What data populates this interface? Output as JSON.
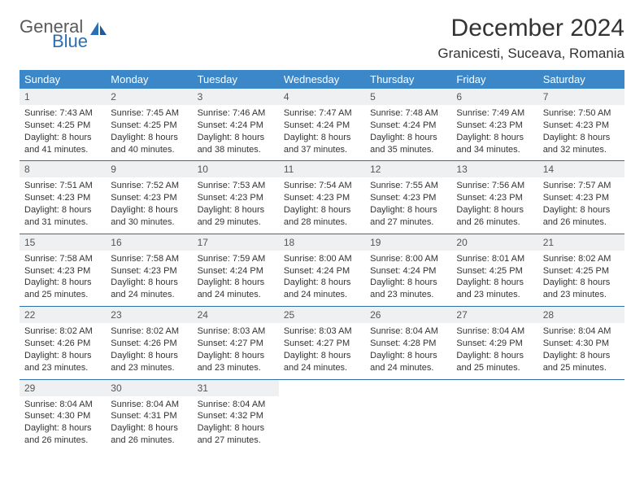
{
  "logo": {
    "word1": "General",
    "word2": "Blue"
  },
  "title": "December 2024",
  "location": "Granicesti, Suceava, Romania",
  "colors": {
    "header_bg": "#3b87c8",
    "header_text": "#ffffff",
    "row_border": "#2f6ea8",
    "daynum_bg": "#eef0f1",
    "logo_gray": "#5a5a5a",
    "logo_blue": "#2a6fb5"
  },
  "day_headers": [
    "Sunday",
    "Monday",
    "Tuesday",
    "Wednesday",
    "Thursday",
    "Friday",
    "Saturday"
  ],
  "weeks": [
    [
      {
        "n": "1",
        "sr": "7:43 AM",
        "ss": "4:25 PM",
        "d1": "Daylight: 8 hours",
        "d2": "and 41 minutes."
      },
      {
        "n": "2",
        "sr": "7:45 AM",
        "ss": "4:25 PM",
        "d1": "Daylight: 8 hours",
        "d2": "and 40 minutes."
      },
      {
        "n": "3",
        "sr": "7:46 AM",
        "ss": "4:24 PM",
        "d1": "Daylight: 8 hours",
        "d2": "and 38 minutes."
      },
      {
        "n": "4",
        "sr": "7:47 AM",
        "ss": "4:24 PM",
        "d1": "Daylight: 8 hours",
        "d2": "and 37 minutes."
      },
      {
        "n": "5",
        "sr": "7:48 AM",
        "ss": "4:24 PM",
        "d1": "Daylight: 8 hours",
        "d2": "and 35 minutes."
      },
      {
        "n": "6",
        "sr": "7:49 AM",
        "ss": "4:23 PM",
        "d1": "Daylight: 8 hours",
        "d2": "and 34 minutes."
      },
      {
        "n": "7",
        "sr": "7:50 AM",
        "ss": "4:23 PM",
        "d1": "Daylight: 8 hours",
        "d2": "and 32 minutes."
      }
    ],
    [
      {
        "n": "8",
        "sr": "7:51 AM",
        "ss": "4:23 PM",
        "d1": "Daylight: 8 hours",
        "d2": "and 31 minutes."
      },
      {
        "n": "9",
        "sr": "7:52 AM",
        "ss": "4:23 PM",
        "d1": "Daylight: 8 hours",
        "d2": "and 30 minutes."
      },
      {
        "n": "10",
        "sr": "7:53 AM",
        "ss": "4:23 PM",
        "d1": "Daylight: 8 hours",
        "d2": "and 29 minutes."
      },
      {
        "n": "11",
        "sr": "7:54 AM",
        "ss": "4:23 PM",
        "d1": "Daylight: 8 hours",
        "d2": "and 28 minutes."
      },
      {
        "n": "12",
        "sr": "7:55 AM",
        "ss": "4:23 PM",
        "d1": "Daylight: 8 hours",
        "d2": "and 27 minutes."
      },
      {
        "n": "13",
        "sr": "7:56 AM",
        "ss": "4:23 PM",
        "d1": "Daylight: 8 hours",
        "d2": "and 26 minutes."
      },
      {
        "n": "14",
        "sr": "7:57 AM",
        "ss": "4:23 PM",
        "d1": "Daylight: 8 hours",
        "d2": "and 26 minutes."
      }
    ],
    [
      {
        "n": "15",
        "sr": "7:58 AM",
        "ss": "4:23 PM",
        "d1": "Daylight: 8 hours",
        "d2": "and 25 minutes."
      },
      {
        "n": "16",
        "sr": "7:58 AM",
        "ss": "4:23 PM",
        "d1": "Daylight: 8 hours",
        "d2": "and 24 minutes."
      },
      {
        "n": "17",
        "sr": "7:59 AM",
        "ss": "4:24 PM",
        "d1": "Daylight: 8 hours",
        "d2": "and 24 minutes."
      },
      {
        "n": "18",
        "sr": "8:00 AM",
        "ss": "4:24 PM",
        "d1": "Daylight: 8 hours",
        "d2": "and 24 minutes."
      },
      {
        "n": "19",
        "sr": "8:00 AM",
        "ss": "4:24 PM",
        "d1": "Daylight: 8 hours",
        "d2": "and 23 minutes."
      },
      {
        "n": "20",
        "sr": "8:01 AM",
        "ss": "4:25 PM",
        "d1": "Daylight: 8 hours",
        "d2": "and 23 minutes."
      },
      {
        "n": "21",
        "sr": "8:02 AM",
        "ss": "4:25 PM",
        "d1": "Daylight: 8 hours",
        "d2": "and 23 minutes."
      }
    ],
    [
      {
        "n": "22",
        "sr": "8:02 AM",
        "ss": "4:26 PM",
        "d1": "Daylight: 8 hours",
        "d2": "and 23 minutes."
      },
      {
        "n": "23",
        "sr": "8:02 AM",
        "ss": "4:26 PM",
        "d1": "Daylight: 8 hours",
        "d2": "and 23 minutes."
      },
      {
        "n": "24",
        "sr": "8:03 AM",
        "ss": "4:27 PM",
        "d1": "Daylight: 8 hours",
        "d2": "and 23 minutes."
      },
      {
        "n": "25",
        "sr": "8:03 AM",
        "ss": "4:27 PM",
        "d1": "Daylight: 8 hours",
        "d2": "and 24 minutes."
      },
      {
        "n": "26",
        "sr": "8:04 AM",
        "ss": "4:28 PM",
        "d1": "Daylight: 8 hours",
        "d2": "and 24 minutes."
      },
      {
        "n": "27",
        "sr": "8:04 AM",
        "ss": "4:29 PM",
        "d1": "Daylight: 8 hours",
        "d2": "and 25 minutes."
      },
      {
        "n": "28",
        "sr": "8:04 AM",
        "ss": "4:30 PM",
        "d1": "Daylight: 8 hours",
        "d2": "and 25 minutes."
      }
    ],
    [
      {
        "n": "29",
        "sr": "8:04 AM",
        "ss": "4:30 PM",
        "d1": "Daylight: 8 hours",
        "d2": "and 26 minutes."
      },
      {
        "n": "30",
        "sr": "8:04 AM",
        "ss": "4:31 PM",
        "d1": "Daylight: 8 hours",
        "d2": "and 26 minutes."
      },
      {
        "n": "31",
        "sr": "8:04 AM",
        "ss": "4:32 PM",
        "d1": "Daylight: 8 hours",
        "d2": "and 27 minutes."
      },
      null,
      null,
      null,
      null
    ]
  ]
}
